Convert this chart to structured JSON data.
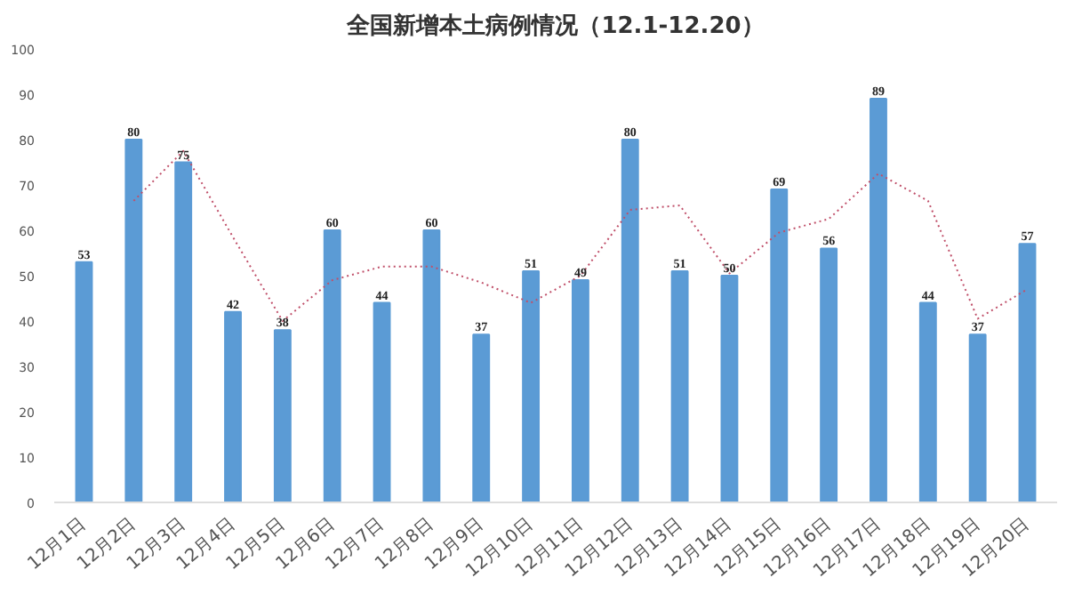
{
  "chart_data": {
    "type": "bar",
    "title": "全国新增本土病例情况（12.1-12.20）",
    "categories": [
      "12月1日",
      "12月2日",
      "12月3日",
      "12月4日",
      "12月5日",
      "12月6日",
      "12月7日",
      "12月8日",
      "12月9日",
      "12月10日",
      "12月11日",
      "12月12日",
      "12月13日",
      "12月14日",
      "12月15日",
      "12月16日",
      "12月17日",
      "12月18日",
      "12月19日",
      "12月20日"
    ],
    "series": [
      {
        "color": "#5b9bd5",
        "values": [
          53,
          80,
          75,
          42,
          38,
          60,
          44,
          60,
          37,
          51,
          49,
          80,
          51,
          50,
          69,
          56,
          89,
          44,
          37,
          57
        ],
        "value_labels": [
          "53",
          "80",
          "75",
          "42",
          "38",
          "60",
          "44",
          "60",
          "37",
          "51",
          "49",
          "80",
          "51",
          "50",
          "69",
          "56",
          "89",
          "44",
          "37",
          "57"
        ]
      },
      {
        "type": "line",
        "color": "#c0506a",
        "line_style": "dotted",
        "values": [
          null,
          66.5,
          77.5,
          58.5,
          40,
          49,
          52,
          52,
          48.5,
          44,
          50,
          64.5,
          65.5,
          50.5,
          59.5,
          62.5,
          72.5,
          66.5,
          40.5,
          47
        ]
      }
    ],
    "ylim": [
      0,
      100
    ],
    "yticks": [
      0,
      10,
      20,
      30,
      40,
      50,
      60,
      70,
      80,
      90,
      100
    ],
    "grid": false
  }
}
